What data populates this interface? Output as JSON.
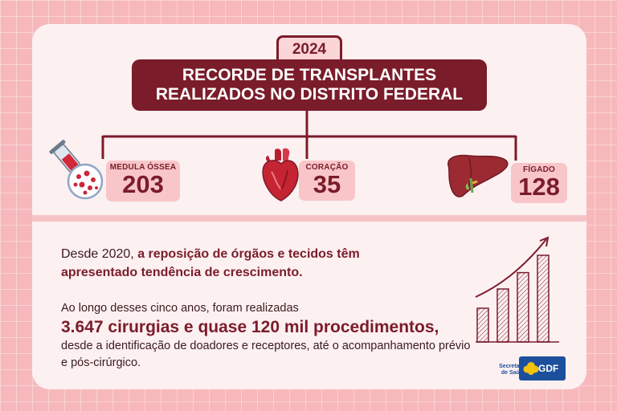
{
  "header": {
    "year": "2024",
    "title_line1": "RECORDE DE TRANSPLANTES",
    "title_line2": "REALIZADOS NO DISTRITO FEDERAL"
  },
  "stats": [
    {
      "label": "MEDULA ÓSSEA",
      "value": "203",
      "icon": "bone-marrow-syringe-icon"
    },
    {
      "label": "CORAÇÃO",
      "value": "35",
      "icon": "heart-icon"
    },
    {
      "label": "FÍGADO",
      "value": "128",
      "icon": "liver-icon"
    }
  ],
  "body": {
    "intro_prefix": "Desde 2020, ",
    "intro_highlight": "a reposição de órgãos e tecidos têm apresentado tendência de crescimento.",
    "detail_prefix": "Ao longo desses cinco anos, foram realizadas",
    "detail_highlight": "3.647 cirurgias e quase 120 mil procedimentos,",
    "detail_suffix": "desde a identificação de doadores e receptores, até o acompanhamento prévio e pós-cirúrgico."
  },
  "growth_icon": {
    "type": "bar",
    "icon": "growth-chart-icon",
    "bar_levels": [
      0.35,
      0.55,
      0.72,
      0.9
    ]
  },
  "footer": {
    "secretaria_line1": "Secretaria",
    "secretaria_line2": "de Saúde",
    "gdf": "GDF"
  },
  "colors": {
    "background": "#f7b8bc",
    "card": "#fdf0f1",
    "accent": "#7a1c2a",
    "stat_box": "#f8c6c8",
    "logo_blue": "#1c4f9c",
    "logo_yellow": "#f4c20d"
  }
}
